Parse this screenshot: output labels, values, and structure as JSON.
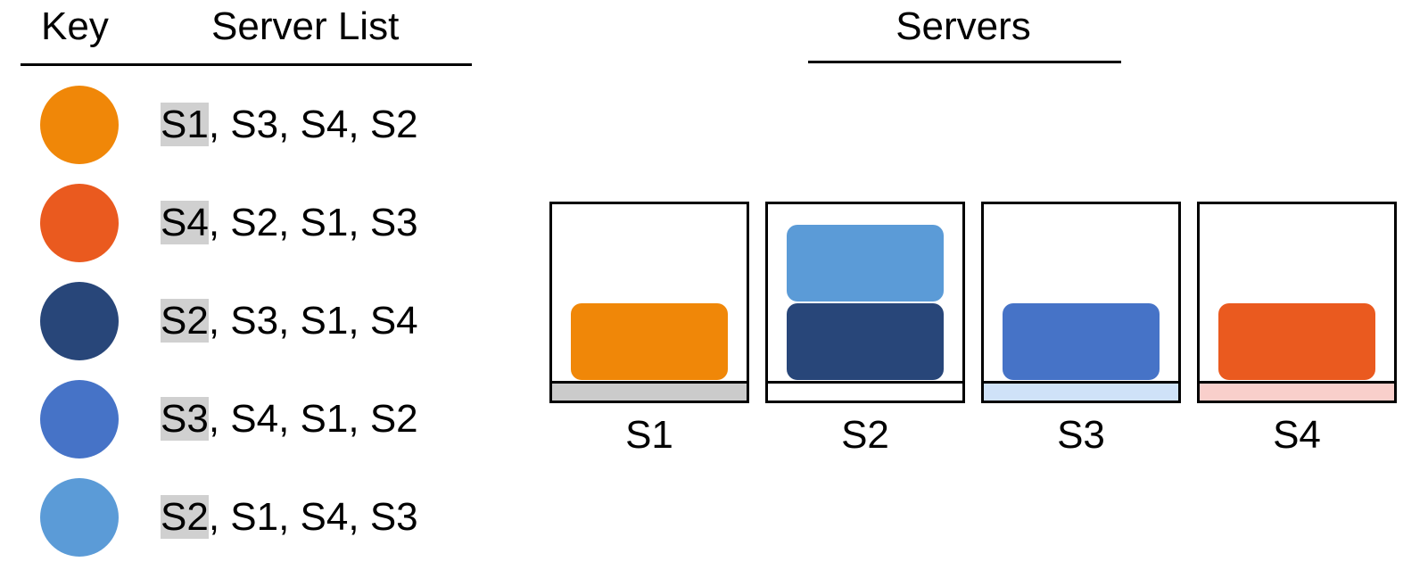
{
  "headers": {
    "key": "Key",
    "server_list": "Server List",
    "servers": "Servers"
  },
  "keys": [
    {
      "color": "#f08708",
      "first": "S1",
      "rest": ", S3, S4, S2"
    },
    {
      "color": "#ea5a1f",
      "first": "S4",
      "rest": ", S2, S1, S3"
    },
    {
      "color": "#284679",
      "first": "S2",
      "rest": ", S3, S1, S4"
    },
    {
      "color": "#4673c7",
      "first": "S3",
      "rest": ", S4, S1, S2"
    },
    {
      "color": "#5b9bd7",
      "first": "S2",
      "rest": ", S1, S4, S3"
    }
  ],
  "servers": [
    {
      "label": "S1",
      "floor_color": "#cbcbcb",
      "blocks": [
        "#f08708"
      ]
    },
    {
      "label": "S2",
      "floor_color": "#ffffff",
      "blocks": [
        "#284679",
        "#5b9bd7"
      ]
    },
    {
      "label": "S3",
      "floor_color": "#cfe2f8",
      "blocks": [
        "#4673c7"
      ]
    },
    {
      "label": "S4",
      "floor_color": "#f9cfcb",
      "blocks": [
        "#ea5a1f"
      ]
    }
  ]
}
